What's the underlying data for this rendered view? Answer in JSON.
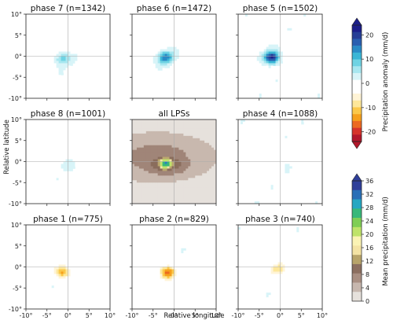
{
  "chart_data": {
    "type": "heatmap",
    "x_axis": {
      "label": "Relative longitude",
      "ticks": [
        "-10°",
        "-5°",
        "0°",
        "5°",
        "10°"
      ],
      "range": [
        -10,
        10
      ]
    },
    "y_axis": {
      "label": "Relative latitude",
      "ticks": [
        "-10°",
        "-5°",
        "0°",
        "5°",
        "10°"
      ],
      "range": [
        -10,
        10
      ]
    },
    "panels": [
      {
        "title": "phase 7 (n=1342)",
        "field": "anomaly",
        "cx": -1.2,
        "cy": -0.6,
        "peak": 9
      },
      {
        "title": "phase 6 (n=1472)",
        "field": "anomaly",
        "cx": -2.0,
        "cy": -0.3,
        "peak": 15
      },
      {
        "title": "phase 5 (n=1502)",
        "field": "anomaly",
        "cx": -2.0,
        "cy": -0.3,
        "peak": 22
      },
      {
        "title": "phase 8 (n=1001)",
        "field": "anomaly",
        "cx": -0.8,
        "cy": -0.8,
        "peak": 2
      },
      {
        "title": "all LPSs",
        "field": "mean",
        "cx": -2.0,
        "cy": -0.5,
        "peak": 33
      },
      {
        "title": "phase 4 (n=1088)",
        "field": "anomaly",
        "cx": 1.5,
        "cy": -0.5,
        "peak": 1.5
      },
      {
        "title": "phase 1 (n=775)",
        "field": "anomaly",
        "cx": -1.2,
        "cy": -1.2,
        "peak": -14
      },
      {
        "title": "phase 2 (n=829)",
        "field": "anomaly",
        "cx": -1.5,
        "cy": -1.3,
        "peak": -18
      },
      {
        "title": "phase 3 (n=740)",
        "field": "anomaly",
        "cx": -0.5,
        "cy": -0.6,
        "peak": -9
      }
    ],
    "colorbar_anomaly": {
      "label": "Precipitation anomaly (mm/d)",
      "ticks": [
        "20",
        "10",
        "0",
        "-10",
        "-20"
      ],
      "range": [
        -24,
        24
      ],
      "colors": [
        "#b2182b",
        "#d6342a",
        "#ec6a20",
        "#f6a01c",
        "#fbc84a",
        "#fde79a",
        "#fff4d6",
        "#ffffff",
        "#ffffff",
        "#d8f4f8",
        "#a8e7f0",
        "#6fd3e3",
        "#3ab6d6",
        "#2a8bc6",
        "#2a5fb0",
        "#263e96",
        "#1c1f8a"
      ]
    },
    "colorbar_mean": {
      "label": "Mean precipitation (mm/d)",
      "ticks": [
        "36",
        "32",
        "28",
        "24",
        "20",
        "16",
        "12",
        "8",
        "4",
        "0"
      ],
      "range": [
        0,
        36
      ],
      "colors": [
        "#e6e1dc",
        "#c7b7ae",
        "#a98f82",
        "#8c6f60",
        "#b8a46a",
        "#f4e3a4",
        "#fbf3b4",
        "#bfe36a",
        "#7fce55",
        "#38b87a",
        "#25a7c2",
        "#2a6fb7",
        "#2f3f99"
      ]
    }
  }
}
